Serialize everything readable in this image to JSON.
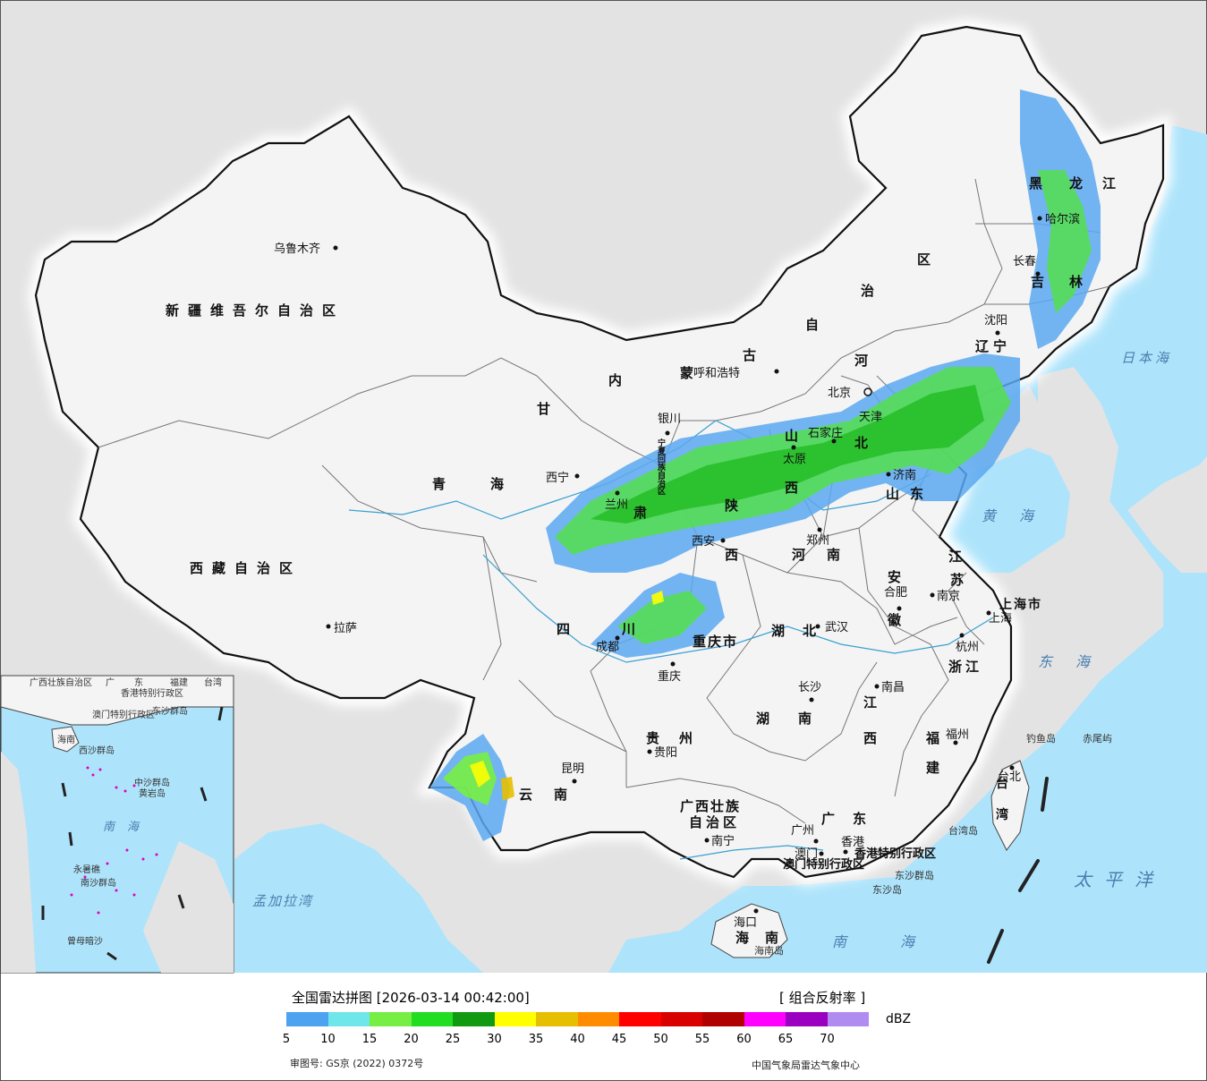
{
  "legend": {
    "title": "全国雷达拼图 [2026-03-14 00:42:00]",
    "product": "[ 组合反射率 ]",
    "unit": "dBZ",
    "ticks": [
      "5",
      "10",
      "15",
      "20",
      "25",
      "30",
      "35",
      "40",
      "45",
      "50",
      "55",
      "60",
      "65",
      "70"
    ],
    "colors": [
      "#4ea3f0",
      "#6fe6ea",
      "#77ee44",
      "#22dd22",
      "#119911",
      "#ffff00",
      "#e6c000",
      "#ff8c00",
      "#ff0000",
      "#d80000",
      "#b00000",
      "#ff00ff",
      "#9a00c0",
      "#b08cf0"
    ],
    "approval": "审图号: GS京 (2022) 0372号",
    "source": "中国气象局雷达气象中心"
  },
  "regions": {
    "xinjiang": "新疆维吾尔自治区",
    "tibet": "西藏自治区",
    "qinghai": "青海",
    "gansu": "甘",
    "su": "肃",
    "neimenggu_1": "内",
    "neimenggu_2": "蒙",
    "neimenggu_3": "古",
    "neimenggu_4": "自",
    "neimenggu_5": "治",
    "neimenggu_6": "区",
    "heilongjiang_1": "黑",
    "heilongjiang_2": "龙",
    "heilongjiang_3": "江",
    "jilin_1": "吉",
    "jilin_2": "林",
    "liaoning_1": "辽",
    "liaoning_2": "宁",
    "hebei_1": "河",
    "hebei_2": "北",
    "shanxi_1": "山",
    "shanxi_2": "西",
    "shaanxi_1": "陕",
    "shaanxi_2": "西",
    "ningxia": "宁夏回族自治区",
    "shandong": "山东",
    "henan": "河南",
    "jiangsu_1": "江",
    "jiangsu_2": "苏",
    "anhui_1": "安",
    "anhui_2": "徽",
    "sichuan_1": "四",
    "sichuan_2": "川",
    "chongqing": "重庆市",
    "hubei": "湖北",
    "hunan": "湖南",
    "jiangxi_1": "江",
    "jiangxi_2": "西",
    "zhejiang": "浙江",
    "fujian_1": "福",
    "fujian_2": "建",
    "guizhou": "贵州",
    "yunnan": "云南",
    "guangxi_1": "广西壮族",
    "guangxi_2": "自治区",
    "guangdong": "广东",
    "hainan": "海南",
    "taiwan": "台湾",
    "shanghai": "上海市",
    "hk": "香港特别行政区",
    "macau": "澳门特别行政区",
    "tianjin": "天津"
  },
  "cities": {
    "urumqi": "乌鲁木齐",
    "lhasa": "拉萨",
    "xining": "西宁",
    "lanzhou": "兰州",
    "yinchuan": "银川",
    "hohhot": "呼和浩特",
    "beijing": "北京",
    "shijiazhuang": "石家庄",
    "taiyuan": "太原",
    "jinan": "济南",
    "zhengzhou": "郑州",
    "xian": "西安",
    "chengdu": "成都",
    "chongqing": "重庆",
    "wuhan": "武汉",
    "hefei": "合肥",
    "nanjing": "南京",
    "shanghai": "上海",
    "hangzhou": "杭州",
    "nanchang": "南昌",
    "changsha": "长沙",
    "guiyang": "贵阳",
    "kunming": "昆明",
    "nanning": "南宁",
    "guangzhou": "广州",
    "hongkong": "香港",
    "macau": "澳门",
    "haikou": "海口",
    "fuzhou": "福州",
    "taibei": "台北",
    "shenyang": "沈阳",
    "changchun": "长春",
    "harbin": "哈尔滨"
  },
  "seas": {
    "japan": "日本海",
    "yellow": "黄海",
    "east": "东海",
    "south": "南海",
    "pacific": "太平洋",
    "bengal": "孟加拉湾"
  },
  "islands": {
    "diaoyu": "钓鱼岛",
    "chiwei": "赤尾屿",
    "taiwan_island": "台湾岛",
    "dongsha": "东沙群岛",
    "dongsha_dao": "东沙岛",
    "hainan_island": "海南岛"
  },
  "inset": {
    "guangxi": "广西壮族自治区",
    "guangdong_1": "广",
    "guangdong_2": "东",
    "fujian": "福建",
    "taiwan": "台湾",
    "hk": "香港特别行政区",
    "macau": "澳门特别行政区",
    "dongsha": "东沙群岛",
    "hainan": "海南",
    "xisha": "西沙群岛",
    "zhongsha": "中沙群岛",
    "huangyan": "黄岩岛",
    "nansha": "南沙群岛",
    "yongshu": "永暑礁",
    "zengmu": "曾母暗沙",
    "nanhai": "南海"
  }
}
